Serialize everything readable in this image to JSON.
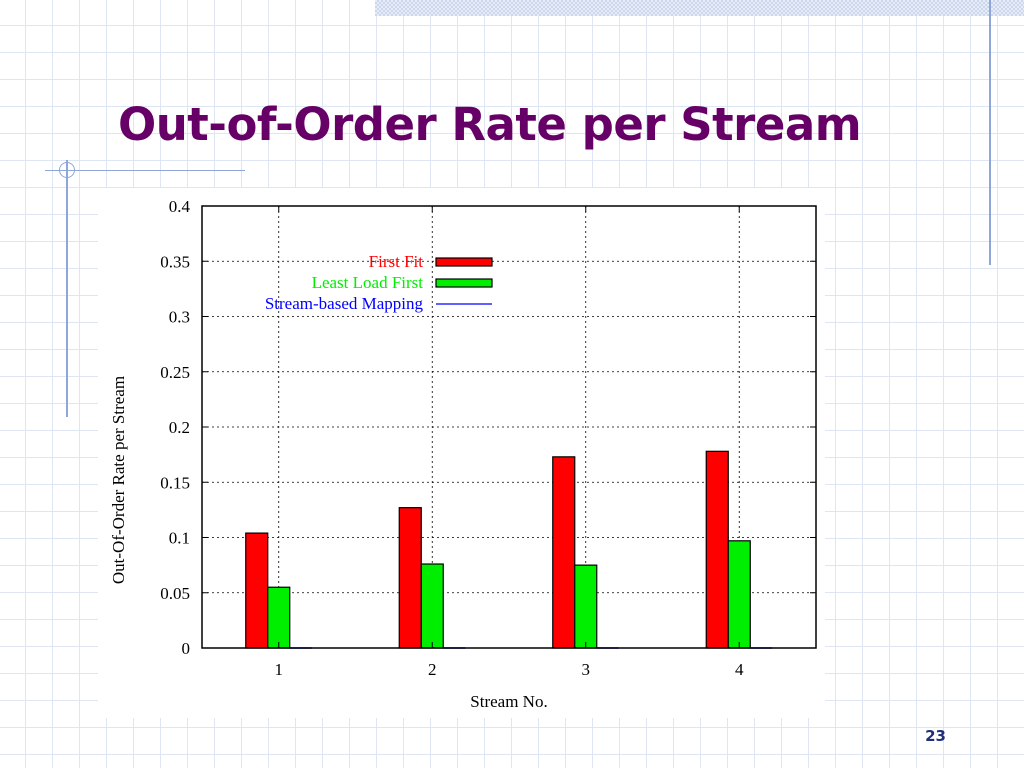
{
  "slide": {
    "title": "Out-of-Order Rate per Stream",
    "page_number": "23"
  },
  "colors": {
    "title": "#660066",
    "first_fit": "#ff0000",
    "least_load_first": "#00ee00",
    "stream_based_mapping": "#0000ff",
    "grid_background": "#dfe6f3"
  },
  "chart_data": {
    "type": "bar",
    "categories": [
      "1",
      "2",
      "3",
      "4"
    ],
    "series": [
      {
        "name": "First Fit",
        "values": [
          0.104,
          0.127,
          0.173,
          0.178
        ],
        "color": "#ff0000"
      },
      {
        "name": "Least Load First",
        "values": [
          0.055,
          0.076,
          0.075,
          0.097
        ],
        "color": "#00ee00"
      },
      {
        "name": "Stream-based Mapping",
        "values": [
          0,
          0,
          0,
          0
        ],
        "color": "#0000ff"
      }
    ],
    "title": "",
    "xlabel": "Stream No.",
    "ylabel": "Out-Of-Order Rate per Stream",
    "ylim": [
      0,
      0.4
    ],
    "yticks": [
      "0",
      "0.05",
      "0.1",
      "0.15",
      "0.2",
      "0.25",
      "0.3",
      "0.35",
      "0.4"
    ],
    "grid": true,
    "legend_position": "top-center"
  }
}
